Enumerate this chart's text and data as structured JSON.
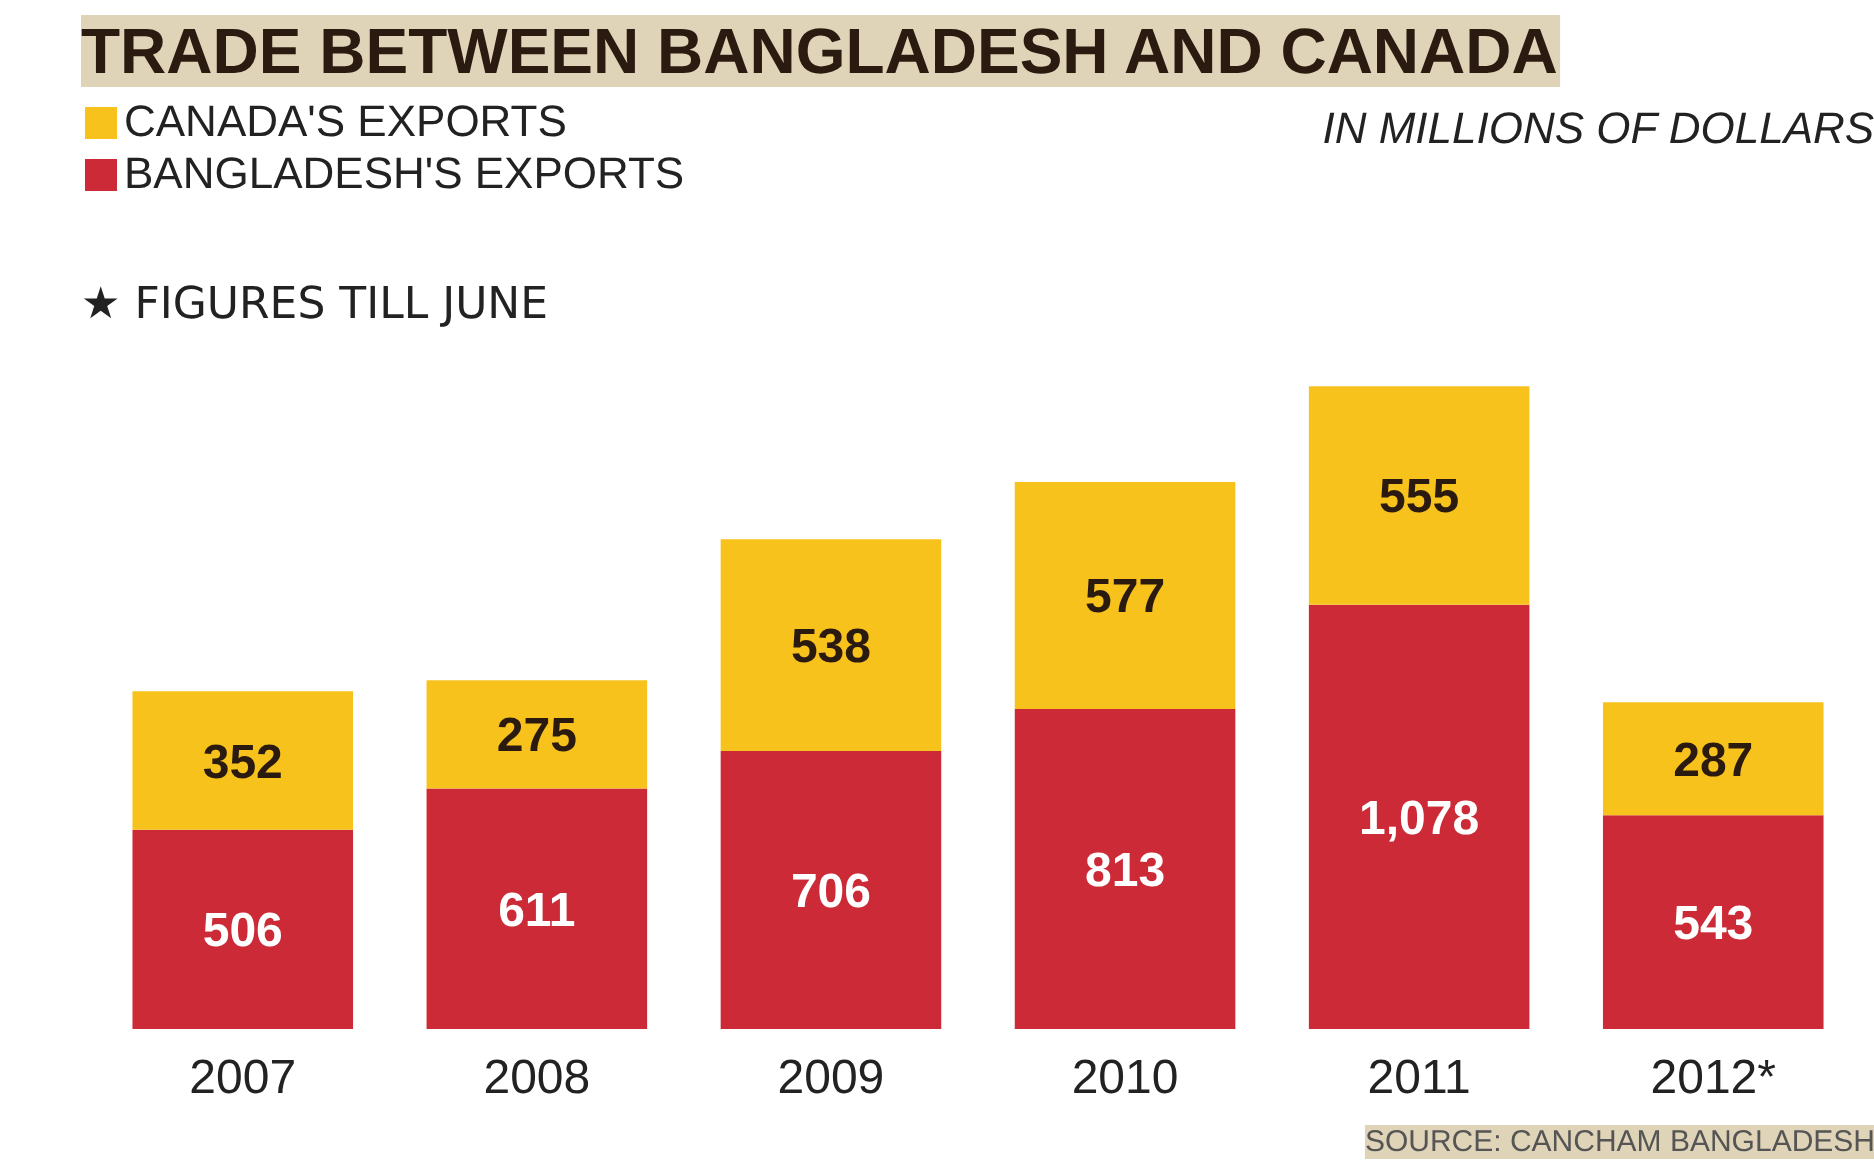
{
  "chart_data": {
    "type": "bar",
    "title": "TRADE BETWEEN BANGLADESH AND CANADA",
    "subtitle": "IN MILLIONS OF DOLLARS",
    "categories": [
      "2007",
      "2008",
      "2009",
      "2010",
      "2011",
      "2012*"
    ],
    "stacked": true,
    "data_labels": true,
    "legend": "top left",
    "grid": false,
    "series": [
      {
        "name": "BANGLADESH'S EXPORTS",
        "color": "#cc2a36",
        "values": [
          506,
          611,
          706,
          813,
          1078,
          543
        ],
        "value_labels": [
          "506",
          "611",
          "706",
          "813",
          "1,078",
          "543"
        ]
      },
      {
        "name": "CANADA'S EXPORTS",
        "color": "#f7c21c",
        "values": [
          352,
          275,
          538,
          577,
          555,
          287
        ]
      }
    ],
    "annotations": [
      "★ FIGURES TILL JUNE",
      "SOURCE: CANCHAM BANGLADESH"
    ]
  }
}
